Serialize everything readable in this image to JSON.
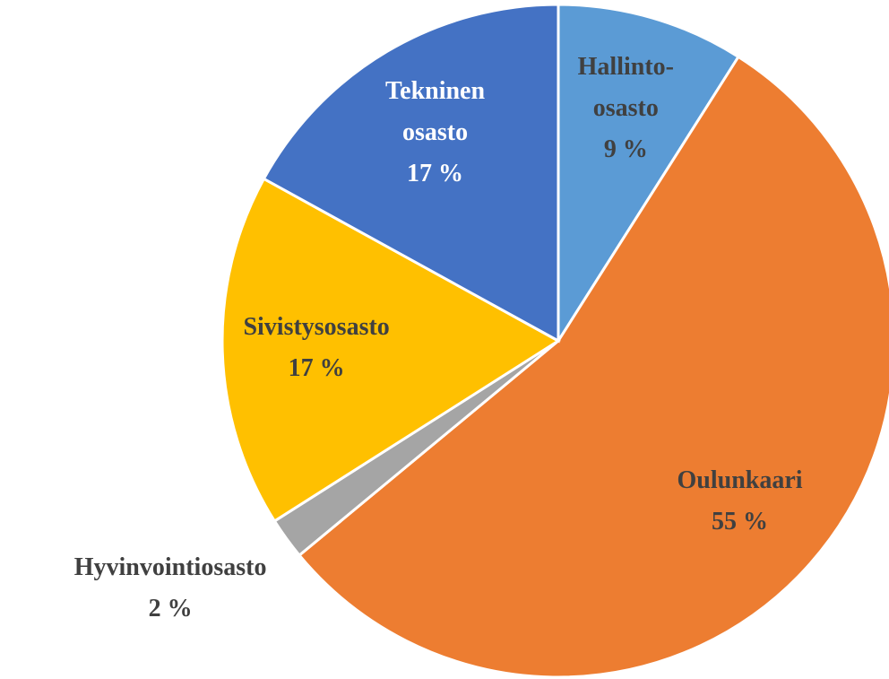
{
  "chart_data": {
    "type": "pie",
    "categories": [
      "Hallinto-osasto",
      "Oulunkaari",
      "Hyvinvointiosasto",
      "Sivistysosasto",
      "Tekninen osasto"
    ],
    "values": [
      9,
      55,
      2,
      17,
      17
    ],
    "value_labels": [
      "9 %",
      "55 %",
      "2 %",
      "17 %",
      "17 %"
    ],
    "colors": [
      "#5b9bd5",
      "#ed7d31",
      "#a5a5a5",
      "#ffc000",
      "#4472c4"
    ]
  }
}
